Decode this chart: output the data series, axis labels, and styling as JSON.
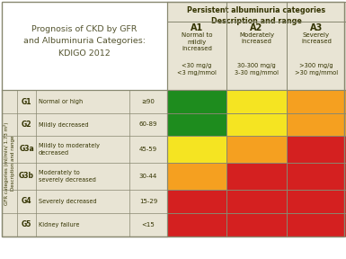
{
  "title_line1": "Prognosis of CKD by GFR",
  "title_line2": "and Albuminuria Categories:",
  "title_line3": "KDIGO 2012",
  "albuminuria_header": "Persistent albuminuria categories\nDescription and range",
  "a_categories": [
    "A1",
    "A2",
    "A3"
  ],
  "a_descriptions": [
    "Normal to\nmildly\nincreased",
    "Moderately\nincreased",
    "Severely\nincreased"
  ],
  "a_ranges": [
    "<30 mg/g\n<3 mg/mmol",
    "30-300 mg/g\n3-30 mg/mmol",
    ">300 mg/g\n>30 mg/mmol"
  ],
  "gfr_label": "GFR categories (ml/min/ 1.73 m²)\nDescription and range",
  "g_categories": [
    "G1",
    "G2",
    "G3a",
    "G3b",
    "G4",
    "G5"
  ],
  "g_descriptions": [
    "Normal or high",
    "Mildly decreased",
    "Mildly to moderately\ndecreased",
    "Moderately to\nseverely decreased",
    "Severely decreased",
    "Kidney failure"
  ],
  "g_ranges": [
    "≥90",
    "60-89",
    "45-59",
    "30-44",
    "15-29",
    "<15"
  ],
  "colors": {
    "green": "#1e8c1e",
    "yellow": "#f5e422",
    "orange": "#f5a020",
    "red": "#d42020",
    "bg_header": "#e8e4d4",
    "bg_label": "#e8e4d4",
    "border": "#888870",
    "white": "#ffffff",
    "title_color": "#555530"
  },
  "cell_colors": [
    [
      "green",
      "yellow",
      "orange"
    ],
    [
      "green",
      "yellow",
      "orange"
    ],
    [
      "yellow",
      "orange",
      "red"
    ],
    [
      "orange",
      "red",
      "red"
    ],
    [
      "red",
      "red",
      "red"
    ],
    [
      "red",
      "red",
      "red"
    ]
  ]
}
